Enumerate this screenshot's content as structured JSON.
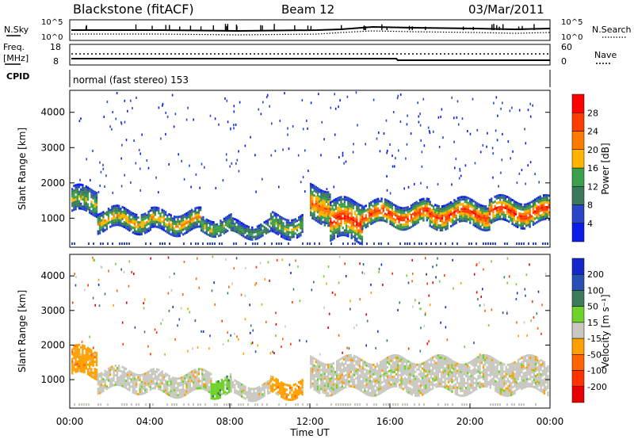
{
  "header": {
    "site": "Blackstone (fitACF)",
    "beam": "Beam 12",
    "date": "03/Mar/2011"
  },
  "noise_panel": {
    "left_label": "N.Sky",
    "right_label": "N.Search",
    "left_ticks": [
      "10^5",
      "10^0"
    ],
    "right_ticks": [
      "10^5",
      "10^0"
    ]
  },
  "freq_panel": {
    "left_label_top": "Freq.",
    "left_label_bottom": "[MHz]",
    "right_label": "Nave",
    "left_ticks": [
      "18",
      "8"
    ],
    "right_ticks": [
      "60",
      "0"
    ]
  },
  "cpid_panel": {
    "label": "CPID",
    "text": "normal (fast stereo) 153"
  },
  "chart_data": [
    {
      "type": "heatmap",
      "name": "power",
      "ylabel": "Slant Range [km]",
      "ylim": [
        200,
        4600
      ],
      "yticks": [
        1000,
        2000,
        3000,
        4000
      ],
      "xlim": [
        0,
        24
      ],
      "colorbar": {
        "label": "Power [dB]",
        "ticks": [
          "4",
          "8",
          "12",
          "16",
          "20",
          "24",
          "28"
        ],
        "colors": [
          "#0a1ee8",
          "#2846c8",
          "#3a7a5a",
          "#3aa04a",
          "#ffb400",
          "#ff7a00",
          "#ff3c00",
          "#ff0000"
        ]
      },
      "bands": [
        {
          "t": [
            0.0,
            1.3
          ],
          "lo": 1150,
          "hi": 1850,
          "level": 3
        },
        {
          "t": [
            1.3,
            4.0
          ],
          "lo": 700,
          "hi": 1250,
          "level": 4
        },
        {
          "t": [
            4.0,
            6.5
          ],
          "lo": 650,
          "hi": 1200,
          "level": 4
        },
        {
          "t": [
            6.5,
            8.0
          ],
          "lo": 600,
          "hi": 1050,
          "level": 3
        },
        {
          "t": [
            8.0,
            10.0
          ],
          "lo": 500,
          "hi": 900,
          "level": 2
        },
        {
          "t": [
            10.0,
            11.6
          ],
          "lo": 550,
          "hi": 1100,
          "level": 3
        },
        {
          "t": [
            12.0,
            13.0
          ],
          "lo": 900,
          "hi": 1900,
          "level": 5
        },
        {
          "t": [
            13.0,
            14.6
          ],
          "lo": 400,
          "hi": 1500,
          "level": 6
        },
        {
          "t": [
            14.6,
            18.0
          ],
          "lo": 800,
          "hi": 1450,
          "level": 6
        },
        {
          "t": [
            18.0,
            21.0
          ],
          "lo": 800,
          "hi": 1500,
          "level": 6
        },
        {
          "t": [
            21.0,
            24.0
          ],
          "lo": 850,
          "hi": 1550,
          "level": 6
        }
      ]
    },
    {
      "type": "heatmap",
      "name": "velocity",
      "ylabel": "Slant Range [km]",
      "ylim": [
        200,
        4600
      ],
      "yticks": [
        1000,
        2000,
        3000,
        4000
      ],
      "xlim": [
        0,
        24
      ],
      "xlabel": "Time UT",
      "xticks": [
        "00:00",
        "04:00",
        "08:00",
        "12:00",
        "16:00",
        "20:00",
        "00:00"
      ],
      "colorbar": {
        "label": "Velocity [m s⁻¹]",
        "ticks": [
          "200",
          "100",
          "50",
          "15",
          "-15",
          "-50",
          "-100",
          "-200"
        ],
        "colors": [
          "#1428c8",
          "#2850b4",
          "#3c7a5a",
          "#6ed22a",
          "#c8c8c0",
          "#ffa000",
          "#ff6400",
          "#ff3200",
          "#e60000"
        ]
      },
      "bands": [
        {
          "t": [
            0.0,
            1.3
          ],
          "lo": 1100,
          "hi": 1900,
          "vel": "-50"
        },
        {
          "t": [
            1.3,
            4.0
          ],
          "lo": 700,
          "hi": 1300,
          "vel": "-15"
        },
        {
          "t": [
            4.0,
            7.0
          ],
          "lo": 600,
          "hi": 1200,
          "vel": "-15"
        },
        {
          "t": [
            7.0,
            8.0
          ],
          "lo": 600,
          "hi": 1100,
          "vel": "15"
        },
        {
          "t": [
            8.0,
            10.0
          ],
          "lo": 500,
          "hi": 900,
          "vel": "-15"
        },
        {
          "t": [
            10.0,
            11.6
          ],
          "lo": 550,
          "hi": 1000,
          "vel": "-50"
        },
        {
          "t": [
            12.0,
            24.0
          ],
          "lo": 700,
          "hi": 1600,
          "vel": "-15"
        }
      ]
    }
  ]
}
